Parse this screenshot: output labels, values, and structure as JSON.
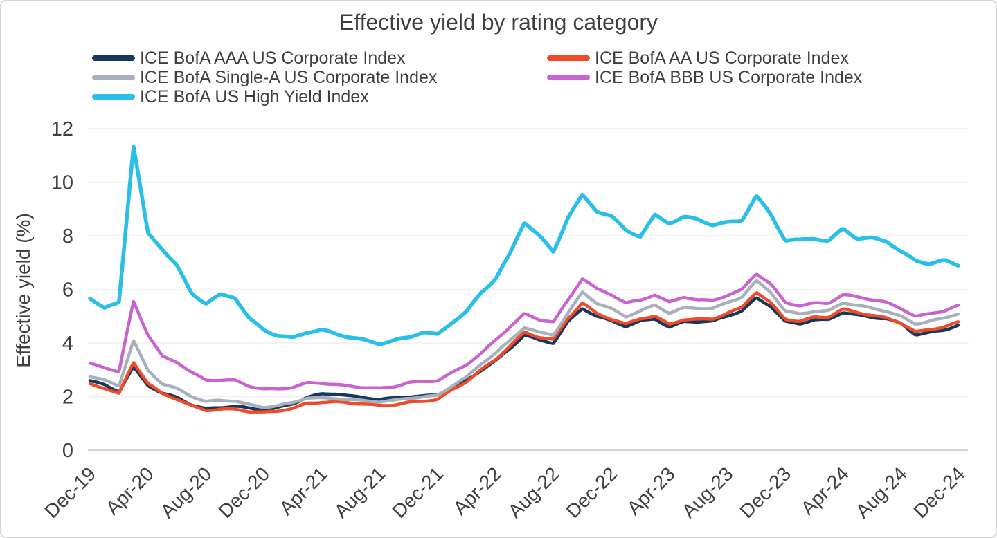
{
  "title": "Effective yield by rating category",
  "y_axis": {
    "label": "Effective yield (%)",
    "ticks": [
      0,
      2,
      4,
      6,
      8,
      10,
      12
    ],
    "min": 0,
    "max": 12
  },
  "x_axis": {
    "tick_labels": [
      "Dec-19",
      "Apr-20",
      "Aug-20",
      "Dec-20",
      "Apr-21",
      "Aug-21",
      "Dec-21",
      "Apr-22",
      "Aug-22",
      "Dec-22",
      "Apr-23",
      "Aug-23",
      "Dec-23",
      "Apr-24",
      "Aug-24",
      "Dec-24"
    ]
  },
  "chart_data": {
    "type": "line",
    "title": "Effective yield by rating category",
    "xlabel": "",
    "ylabel": "Effective yield (%)",
    "ylim": [
      0,
      12
    ],
    "grid": "horizontal",
    "legend_position": "top",
    "x": [
      "Dec-19",
      "Jan-20",
      "Feb-20",
      "Mar-20",
      "Apr-20",
      "May-20",
      "Jun-20",
      "Jul-20",
      "Aug-20",
      "Sep-20",
      "Oct-20",
      "Nov-20",
      "Dec-20",
      "Jan-21",
      "Feb-21",
      "Mar-21",
      "Apr-21",
      "May-21",
      "Jun-21",
      "Jul-21",
      "Aug-21",
      "Sep-21",
      "Oct-21",
      "Nov-21",
      "Dec-21",
      "Jan-22",
      "Feb-22",
      "Mar-22",
      "Apr-22",
      "May-22",
      "Jun-22",
      "Jul-22",
      "Aug-22",
      "Sep-22",
      "Oct-22",
      "Nov-22",
      "Dec-22",
      "Jan-23",
      "Feb-23",
      "Mar-23",
      "Apr-23",
      "May-23",
      "Jun-23",
      "Jul-23",
      "Aug-23",
      "Sep-23",
      "Oct-23",
      "Nov-23",
      "Dec-23",
      "Jan-24",
      "Feb-24",
      "Mar-24",
      "Apr-24",
      "May-24",
      "Jun-24",
      "Jul-24",
      "Aug-24",
      "Sep-24",
      "Oct-24",
      "Nov-24",
      "Dec-24"
    ],
    "series": [
      {
        "name": "ICE BofA AAA US Corporate Index",
        "color": "#17375c",
        "values": [
          2.6,
          2.45,
          2.2,
          3.1,
          2.4,
          2.1,
          1.95,
          1.7,
          1.55,
          1.6,
          1.65,
          1.55,
          1.5,
          1.6,
          1.75,
          2.0,
          2.1,
          2.1,
          2.0,
          1.95,
          1.9,
          1.95,
          2.0,
          2.0,
          2.05,
          2.35,
          2.6,
          3.0,
          3.35,
          3.8,
          4.3,
          4.1,
          4.0,
          4.8,
          5.3,
          5.0,
          4.8,
          4.6,
          4.8,
          4.9,
          4.6,
          4.8,
          4.8,
          4.8,
          5.0,
          5.2,
          5.7,
          5.4,
          4.8,
          4.7,
          4.85,
          4.85,
          5.15,
          5.05,
          4.95,
          4.9,
          4.7,
          4.3,
          4.4,
          4.5,
          4.7
        ]
      },
      {
        "name": "ICE BofA AA US Corporate Index",
        "color": "#f04b28",
        "values": [
          2.45,
          2.3,
          2.1,
          3.3,
          2.5,
          2.1,
          1.9,
          1.65,
          1.5,
          1.55,
          1.55,
          1.45,
          1.4,
          1.45,
          1.55,
          1.75,
          1.8,
          1.8,
          1.75,
          1.7,
          1.65,
          1.7,
          1.8,
          1.85,
          1.9,
          2.25,
          2.55,
          3.0,
          3.4,
          3.9,
          4.4,
          4.2,
          4.1,
          4.9,
          5.5,
          5.1,
          4.9,
          4.7,
          4.9,
          5.0,
          4.7,
          4.9,
          4.9,
          4.9,
          5.1,
          5.3,
          5.9,
          5.5,
          4.9,
          4.8,
          4.95,
          4.95,
          5.25,
          5.15,
          5.05,
          4.95,
          4.75,
          4.4,
          4.5,
          4.6,
          4.8
        ]
      },
      {
        "name": "ICE BofA Single-A US Corporate Index",
        "color": "#a7b1bd",
        "values": [
          2.75,
          2.6,
          2.4,
          4.1,
          3.0,
          2.5,
          2.3,
          2.0,
          1.8,
          1.85,
          1.85,
          1.7,
          1.6,
          1.65,
          1.75,
          1.95,
          1.95,
          1.95,
          1.9,
          1.85,
          1.8,
          1.85,
          1.95,
          2.0,
          2.05,
          2.4,
          2.7,
          3.2,
          3.6,
          4.1,
          4.6,
          4.4,
          4.3,
          5.1,
          5.9,
          5.5,
          5.3,
          5.0,
          5.2,
          5.4,
          5.1,
          5.3,
          5.3,
          5.3,
          5.5,
          5.7,
          6.3,
          5.9,
          5.2,
          5.1,
          5.2,
          5.2,
          5.5,
          5.4,
          5.3,
          5.2,
          5.0,
          4.7,
          4.8,
          4.9,
          5.1
        ]
      },
      {
        "name": "ICE BofA BBB US Corporate Index",
        "color": "#c964cf",
        "values": [
          3.25,
          3.1,
          2.9,
          5.55,
          4.3,
          3.5,
          3.3,
          2.9,
          2.6,
          2.6,
          2.6,
          2.4,
          2.3,
          2.3,
          2.35,
          2.5,
          2.5,
          2.45,
          2.4,
          2.35,
          2.3,
          2.35,
          2.5,
          2.55,
          2.6,
          2.9,
          3.2,
          3.6,
          4.1,
          4.6,
          5.1,
          4.9,
          4.8,
          5.6,
          6.4,
          6.0,
          5.8,
          5.5,
          5.6,
          5.8,
          5.5,
          5.7,
          5.6,
          5.6,
          5.8,
          6.0,
          6.6,
          6.2,
          5.5,
          5.4,
          5.5,
          5.5,
          5.8,
          5.7,
          5.6,
          5.5,
          5.3,
          5.0,
          5.1,
          5.2,
          5.4
        ]
      },
      {
        "name": "ICE BofA US High Yield Index",
        "color": "#29bfe9",
        "values": [
          5.7,
          5.3,
          5.5,
          11.35,
          8.05,
          7.5,
          6.9,
          5.9,
          5.5,
          5.8,
          5.7,
          4.9,
          4.5,
          4.3,
          4.2,
          4.4,
          4.45,
          4.3,
          4.2,
          4.1,
          4.0,
          4.1,
          4.2,
          4.4,
          4.3,
          4.8,
          5.2,
          5.9,
          6.4,
          7.3,
          8.5,
          8.0,
          7.4,
          8.7,
          9.5,
          8.9,
          8.7,
          8.2,
          8.0,
          8.8,
          8.5,
          8.7,
          8.6,
          8.4,
          8.5,
          8.6,
          9.5,
          8.8,
          7.8,
          7.8,
          7.9,
          7.8,
          8.3,
          7.9,
          7.9,
          7.8,
          7.4,
          7.1,
          7.0,
          7.1,
          6.9
        ]
      }
    ]
  }
}
